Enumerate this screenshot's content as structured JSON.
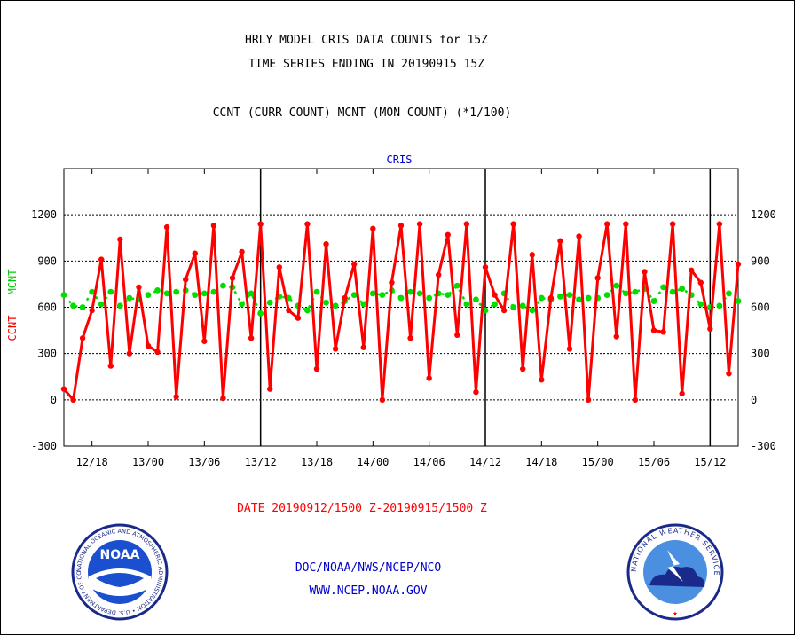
{
  "header": {
    "title_line1": "HRLY MODEL CRIS DATA COUNTS for 15Z",
    "title_line2": "TIME SERIES ENDING IN 20190915 15Z",
    "subtitle": "CCNT (CURR COUNT) MCNT (MON COUNT) (*1/100)"
  },
  "footer": {
    "date_range": "DATE 20190912/1500 Z-20190915/1500 Z",
    "org": "DOC/NOAA/NWS/NCEP/NCO",
    "url": "WWW.NCEP.NOAA.GOV"
  },
  "logos": {
    "left_text": "NOAA",
    "left_ring_text": "NATIONAL OCEANIC AND ATMOSPHERIC ADMINISTRATION • U.S. DEPARTMENT OF COMMERCE",
    "right_ring_text": "NATIONAL WEATHER SERVICE"
  },
  "colors": {
    "ccnt": "#ff0000",
    "mcnt": "#00dd00",
    "title": "#000000",
    "date": "#ff0000",
    "footer": "#0000cc",
    "instrument": "#0000cc"
  },
  "chart_data": {
    "type": "line",
    "title": "CRIS",
    "ylabel_left_1": "CCNT",
    "ylabel_left_2": "MCNT",
    "ylim": [
      -300,
      1500
    ],
    "yticks": [
      -300,
      0,
      300,
      600,
      900,
      1200
    ],
    "xticks": [
      "12/18",
      "13/00",
      "13/06",
      "13/12",
      "13/18",
      "14/00",
      "14/06",
      "14/12",
      "14/18",
      "15/00",
      "15/06",
      "15/12"
    ],
    "x_start": "20190912/15",
    "x_end": "20190915/15",
    "day_boundaries": [
      "13/12",
      "14/12",
      "15/12"
    ],
    "grid_y": true,
    "series": [
      {
        "name": "CCNT",
        "values": [
          70,
          0,
          400,
          580,
          910,
          220,
          1040,
          300,
          730,
          350,
          310,
          1120,
          20,
          780,
          950,
          380,
          1130,
          10,
          790,
          960,
          400,
          1140,
          70,
          860,
          580,
          530,
          1140,
          200,
          1010,
          330,
          660,
          880,
          340,
          1110,
          0,
          760,
          1130,
          400,
          1140,
          140,
          810,
          1070,
          420,
          1140,
          50,
          860,
          680,
          580,
          1140,
          200,
          940,
          130,
          660,
          1030,
          330,
          1060,
          0,
          790,
          1140,
          410,
          1140,
          0,
          830,
          450,
          440,
          1140,
          40,
          840,
          760,
          460,
          1140,
          170,
          880
        ]
      },
      {
        "name": "MCNT",
        "values": [
          680,
          610,
          600,
          700,
          620,
          700,
          610,
          660,
          650,
          680,
          710,
          690,
          700,
          710,
          680,
          690,
          700,
          740,
          730,
          620,
          690,
          560,
          630,
          670,
          660,
          610,
          580,
          700,
          630,
          610,
          640,
          680,
          620,
          690,
          680,
          710,
          660,
          700,
          690,
          660,
          690,
          680,
          740,
          620,
          650,
          580,
          620,
          690,
          600,
          610,
          580,
          660,
          650,
          670,
          680,
          650,
          660,
          660,
          680,
          740,
          690,
          700,
          720,
          640,
          730,
          700,
          720,
          680,
          620,
          600,
          610,
          690,
          640
        ]
      }
    ]
  }
}
